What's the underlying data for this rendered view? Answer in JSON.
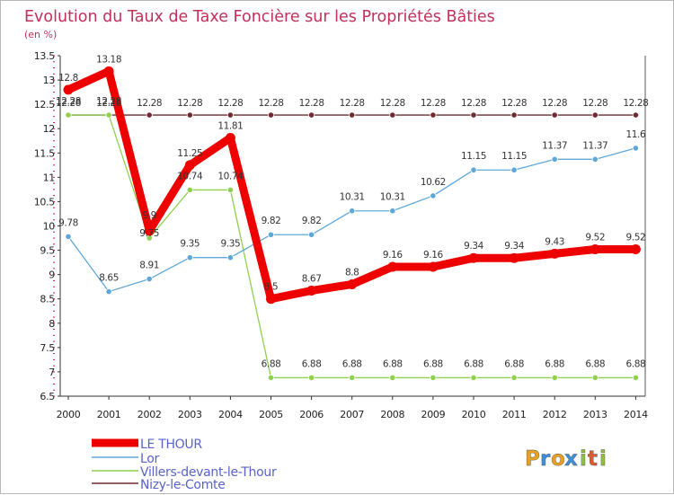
{
  "chart_data": {
    "type": "line",
    "title": "Evolution du Taux de Taxe Foncière sur les Propriétés Bâties",
    "subtitle": "(en %)",
    "xlabel": "",
    "ylabel": "(en %)",
    "x": [
      "2000",
      "2001",
      "2002",
      "2003",
      "2004",
      "2005",
      "2006",
      "2007",
      "2008",
      "2009",
      "2010",
      "2011",
      "2012",
      "2013",
      "2014"
    ],
    "ylim": [
      6.5,
      13.5
    ],
    "yticks": [
      "6.5",
      "7",
      "7.5",
      "8",
      "8.5",
      "9",
      "9.5",
      "10",
      "10.5",
      "11",
      "11.5",
      "12",
      "12.5",
      "13",
      "13.5"
    ],
    "grid": false,
    "legend": "bottom-left",
    "series": [
      {
        "name": "LE THOUR",
        "color": "#ee0000",
        "values": [
          12.8,
          13.18,
          9.9,
          11.25,
          11.81,
          8.5,
          8.67,
          8.8,
          9.16,
          9.16,
          9.34,
          9.34,
          9.43,
          9.52,
          9.52
        ],
        "labels": [
          "12.8",
          "13.18",
          "9.9",
          "11.25",
          "11.81",
          "8.5",
          "8.67",
          "8.8",
          "9.16",
          "9.16",
          "9.34",
          "9.34",
          "9.43",
          "9.52",
          "9.52"
        ]
      },
      {
        "name": "Lor",
        "color": "#5ea7d8",
        "values": [
          9.78,
          8.65,
          8.91,
          9.35,
          9.35,
          9.82,
          9.82,
          10.31,
          10.31,
          10.62,
          11.15,
          11.15,
          11.37,
          11.37,
          11.6
        ],
        "labels": [
          "9.78",
          "8.65",
          "8.91",
          "9.35",
          "9.35",
          "9.82",
          "9.82",
          "10.31",
          "10.31",
          "10.62",
          "11.15",
          "11.15",
          "11.37",
          "11.37",
          "11.6"
        ]
      },
      {
        "name": "Villers-devant-le-Thour",
        "color": "#8fd14f",
        "values": [
          12.28,
          12.28,
          9.75,
          10.74,
          10.74,
          6.88,
          6.88,
          6.88,
          6.88,
          6.88,
          6.88,
          6.88,
          6.88,
          6.88,
          6.88
        ],
        "labels": [
          "12.28",
          "12.28",
          "9.75",
          "10.74",
          "10.74",
          "6.88",
          "6.88",
          "6.88",
          "6.88",
          "6.88",
          "6.88",
          "6.88",
          "6.88",
          "6.88",
          "6.88"
        ]
      },
      {
        "name": "Nizy-le-Comte",
        "color": "#6e2a2e",
        "values": [
          12.28,
          12.28,
          12.28,
          12.28,
          12.28,
          12.28,
          12.28,
          12.28,
          12.28,
          12.28,
          12.28,
          12.28,
          12.28,
          12.28,
          12.28
        ],
        "labels": [
          "12.28",
          "12.28",
          "12.28",
          "12.28",
          "12.28",
          "12.28",
          "12.28",
          "12.28",
          "12.28",
          "12.28",
          "12.28",
          "12.28",
          "12.28",
          "12.28",
          "12.28"
        ]
      }
    ]
  },
  "brand": {
    "letters": [
      "P",
      "r",
      "o",
      "x",
      "i",
      "t",
      "i"
    ],
    "colors": [
      "#e8a020",
      "#3d8fd6",
      "#e8a020",
      "#3d8fd6",
      "#8fc23e",
      "#e05a2a",
      "#8fc23e"
    ]
  }
}
